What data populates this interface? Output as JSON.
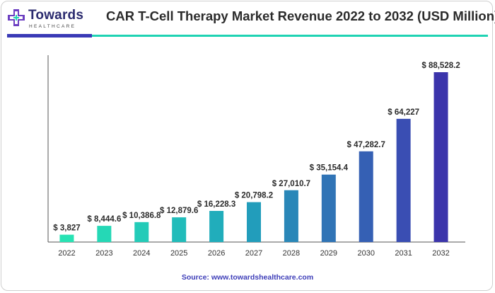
{
  "brand": {
    "name": "Towards",
    "tagline": "HEALTHCARE",
    "colors": {
      "primary": "#2a2a6e",
      "accent": "#6c3fc1",
      "teal": "#1fd3b3"
    }
  },
  "title": "CAR T-Cell Therapy Market Revenue 2022 to 2032 (USD Million)",
  "source_text": "Source: www.towardshealthcare.com",
  "chart_data": {
    "type": "bar",
    "title": "CAR T-Cell Therapy Market Revenue 2022 to 2032 (USD Million)",
    "xlabel": "",
    "ylabel": "",
    "categories": [
      "2022",
      "2023",
      "2024",
      "2025",
      "2026",
      "2027",
      "2028",
      "2029",
      "2030",
      "2031",
      "2032"
    ],
    "values": [
      3827,
      8444.6,
      10386.8,
      12879.6,
      16228.3,
      20798.2,
      27010.7,
      35154.4,
      47282.7,
      64227,
      88528.2
    ],
    "labels": [
      "$ 3,827",
      "$ 8,444.6",
      "$ 10,386.8",
      "$ 12,879.6",
      "$ 16,228.3",
      "$ 20,798.2",
      "$ 27,010.7",
      "$ 35,154.4",
      "$ 47,282.7",
      "$ 64,227",
      "$ 88,528.2"
    ],
    "colors": [
      "#27e3b4",
      "#25d8b6",
      "#23cbb8",
      "#21bcba",
      "#21adbb",
      "#229dbb",
      "#2a87b8",
      "#3074b6",
      "#3560b4",
      "#3a4eb3",
      "#3b34ab"
    ],
    "axis_color": "#555555",
    "grid": false,
    "legend": "none"
  }
}
